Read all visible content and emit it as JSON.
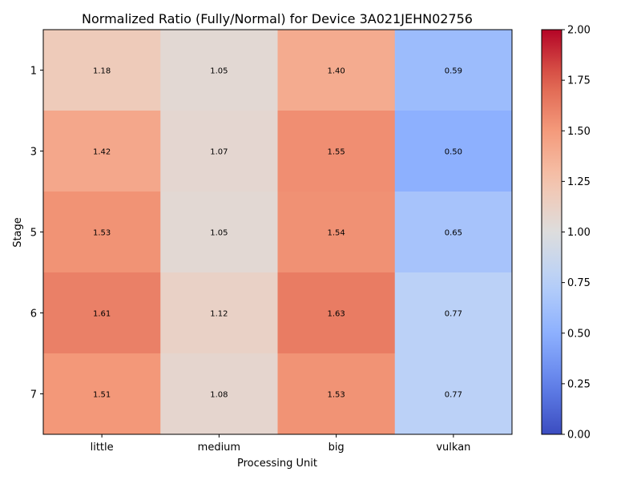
{
  "chart_data": {
    "type": "heatmap",
    "title": "Normalized Ratio (Fully/Normal) for Device 3A021JEHN02756",
    "xlabel": "Processing Unit",
    "ylabel": "Stage",
    "x_categories": [
      "little",
      "medium",
      "big",
      "vulkan"
    ],
    "y_categories": [
      "1",
      "3",
      "5",
      "6",
      "7"
    ],
    "values": [
      [
        1.18,
        1.05,
        1.4,
        0.59
      ],
      [
        1.42,
        1.07,
        1.55,
        0.5
      ],
      [
        1.53,
        1.05,
        1.54,
        0.65
      ],
      [
        1.61,
        1.12,
        1.63,
        0.77
      ],
      [
        1.51,
        1.08,
        1.53,
        0.77
      ]
    ],
    "cell_labels": [
      [
        "1.18",
        "1.05",
        "1.40",
        "0.59"
      ],
      [
        "1.42",
        "1.07",
        "1.55",
        "0.50"
      ],
      [
        "1.53",
        "1.05",
        "1.54",
        "0.65"
      ],
      [
        "1.61",
        "1.12",
        "1.63",
        "0.77"
      ],
      [
        "1.51",
        "1.08",
        "1.53",
        "0.77"
      ]
    ],
    "colormap": "coolwarm",
    "vmin": 0.0,
    "vmax": 2.0,
    "colorbar_ticks": [
      "0.00",
      "0.25",
      "0.50",
      "0.75",
      "1.00",
      "1.25",
      "1.50",
      "1.75",
      "2.00"
    ]
  }
}
